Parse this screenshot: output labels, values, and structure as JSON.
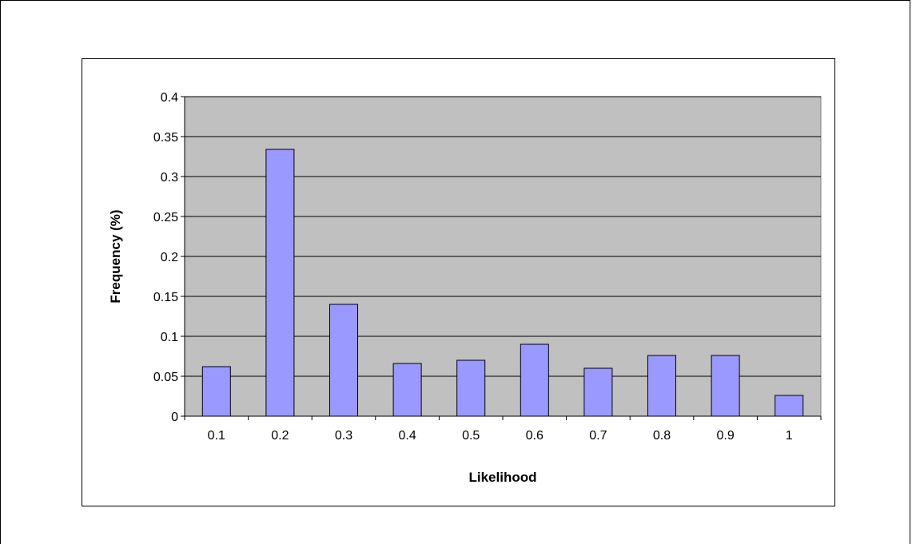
{
  "chart_data": {
    "type": "bar",
    "categories": [
      "0.1",
      "0.2",
      "0.3",
      "0.4",
      "0.5",
      "0.6",
      "0.7",
      "0.8",
      "0.9",
      "1"
    ],
    "values": [
      0.062,
      0.334,
      0.14,
      0.066,
      0.07,
      0.09,
      0.06,
      0.076,
      0.076,
      0.026
    ],
    "yticks": [
      "0",
      "0.05",
      "0.1",
      "0.15",
      "0.2",
      "0.25",
      "0.3",
      "0.35",
      "0.4"
    ],
    "xlabel": "Likelihood",
    "ylabel": "Frequency (%)",
    "ylim": [
      0,
      0.4
    ],
    "grid": true,
    "legend": "none",
    "colors": {
      "bar_fill": "#9999ff",
      "plot_background": "#c0c0c0",
      "gridline": "#000000"
    }
  }
}
